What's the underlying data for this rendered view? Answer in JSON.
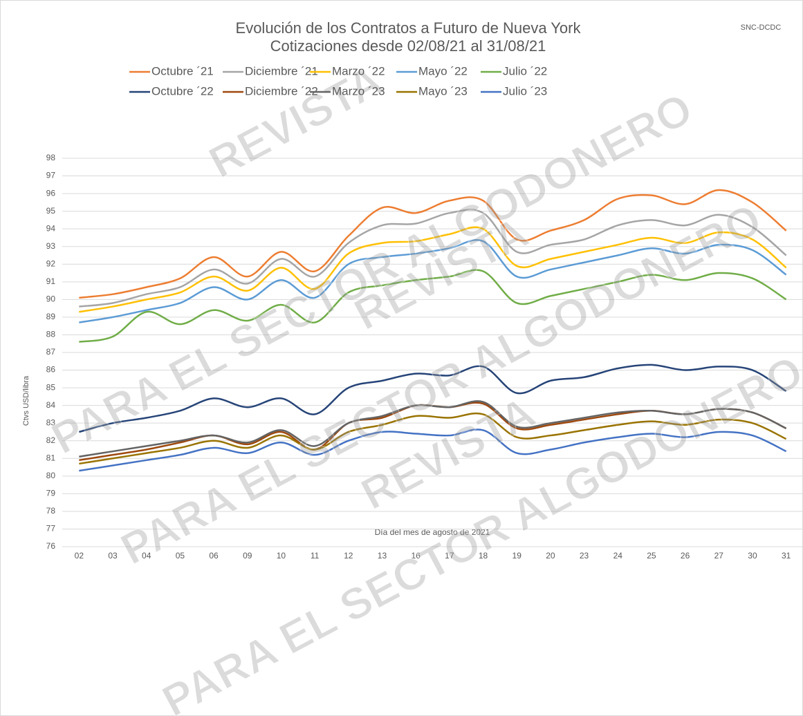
{
  "chart_data": {
    "type": "line",
    "title": "Evolución de los Contratos a Futuro de Nueva York",
    "subtitle": "Cotizaciones desde 02/08/21 al 31/08/21",
    "annotation": "SNC-DCDC",
    "watermark": [
      "REVISTA",
      "PARA EL SECTOR ALGODONERO"
    ],
    "y_label": "Ctvs USD/libra",
    "x_label": "Día del mes de agosto de 2021",
    "categories": [
      "02",
      "03",
      "04",
      "05",
      "06",
      "09",
      "10",
      "11",
      "12",
      "13",
      "16",
      "17",
      "18",
      "19",
      "20",
      "23",
      "24",
      "25",
      "26",
      "27",
      "30",
      "31"
    ],
    "ylim": [
      76,
      98
    ],
    "yticks": [
      76,
      77,
      78,
      79,
      80,
      81,
      82,
      83,
      84,
      85,
      86,
      87,
      88,
      89,
      90,
      91,
      92,
      93,
      94,
      95,
      96,
      97,
      98
    ],
    "grid": true,
    "legend": "top",
    "series": [
      {
        "name": "Octubre ´21",
        "color": "#ed7d31",
        "values": [
          90.1,
          90.3,
          90.7,
          91.2,
          92.4,
          91.3,
          92.7,
          91.6,
          93.6,
          95.2,
          94.9,
          95.6,
          95.6,
          93.4,
          93.9,
          94.5,
          95.7,
          95.9,
          95.4,
          96.2,
          95.5,
          93.9
        ]
      },
      {
        "name": "Diciembre ´21",
        "color": "#a5a5a5",
        "values": [
          89.6,
          89.8,
          90.3,
          90.7,
          91.7,
          90.9,
          92.3,
          91.3,
          93.2,
          94.2,
          94.3,
          94.9,
          94.9,
          92.7,
          93.1,
          93.4,
          94.2,
          94.5,
          94.2,
          94.8,
          94.1,
          92.5
        ]
      },
      {
        "name": "Marzo ´22",
        "color": "#ffc000",
        "values": [
          89.3,
          89.6,
          90.0,
          90.4,
          91.3,
          90.5,
          91.8,
          90.6,
          92.6,
          93.2,
          93.3,
          93.7,
          94.0,
          91.9,
          92.3,
          92.7,
          93.1,
          93.5,
          93.2,
          93.8,
          93.4,
          91.8
        ]
      },
      {
        "name": "Mayo ´22",
        "color": "#5b9bd5",
        "values": [
          88.7,
          89.0,
          89.4,
          89.8,
          90.7,
          90.0,
          91.1,
          90.1,
          92.0,
          92.4,
          92.6,
          92.9,
          93.3,
          91.3,
          91.7,
          92.1,
          92.5,
          92.9,
          92.6,
          93.1,
          92.8,
          91.4
        ]
      },
      {
        "name": "Julio ´22",
        "color": "#70ad47",
        "values": [
          87.6,
          87.9,
          89.3,
          88.6,
          89.4,
          88.8,
          89.7,
          88.7,
          90.4,
          90.8,
          91.1,
          91.3,
          91.6,
          89.8,
          90.2,
          90.6,
          91.0,
          91.4,
          91.1,
          91.5,
          91.2,
          90.0
        ]
      },
      {
        "name": "Octubre ´22",
        "color": "#264478",
        "values": [
          82.5,
          83.0,
          83.3,
          83.7,
          84.4,
          83.9,
          84.4,
          83.5,
          85.0,
          85.4,
          85.8,
          85.7,
          86.2,
          84.7,
          85.4,
          85.6,
          86.1,
          86.3,
          86.0,
          86.2,
          86.0,
          84.8
        ]
      },
      {
        "name": "Diciembre ´22",
        "color": "#9e480e",
        "values": [
          80.9,
          81.2,
          81.5,
          81.9,
          82.3,
          81.8,
          82.5,
          81.5,
          83.0,
          83.3,
          84.0,
          83.9,
          84.1,
          82.7,
          82.9,
          83.2,
          83.5,
          83.7,
          83.5,
          83.8,
          83.6,
          82.7
        ]
      },
      {
        "name": "Marzo ´23",
        "color": "#636363",
        "values": [
          81.1,
          81.4,
          81.7,
          82.0,
          82.3,
          81.9,
          82.6,
          81.7,
          83.0,
          83.4,
          84.0,
          83.9,
          84.2,
          82.8,
          83.0,
          83.3,
          83.6,
          83.7,
          83.5,
          83.8,
          83.6,
          82.7
        ]
      },
      {
        "name": "Mayo ´23",
        "color": "#997300",
        "values": [
          80.7,
          81.0,
          81.3,
          81.6,
          82.0,
          81.6,
          82.3,
          81.5,
          82.5,
          82.9,
          83.4,
          83.3,
          83.5,
          82.2,
          82.3,
          82.6,
          82.9,
          83.1,
          82.9,
          83.2,
          83.0,
          82.1
        ]
      },
      {
        "name": "Julio ´23",
        "color": "#4472c4",
        "values": [
          80.3,
          80.6,
          80.9,
          81.2,
          81.6,
          81.3,
          81.9,
          81.2,
          82.0,
          82.5,
          82.4,
          82.3,
          82.6,
          81.3,
          81.5,
          81.9,
          82.2,
          82.4,
          82.2,
          82.5,
          82.3,
          81.4
        ]
      }
    ]
  }
}
